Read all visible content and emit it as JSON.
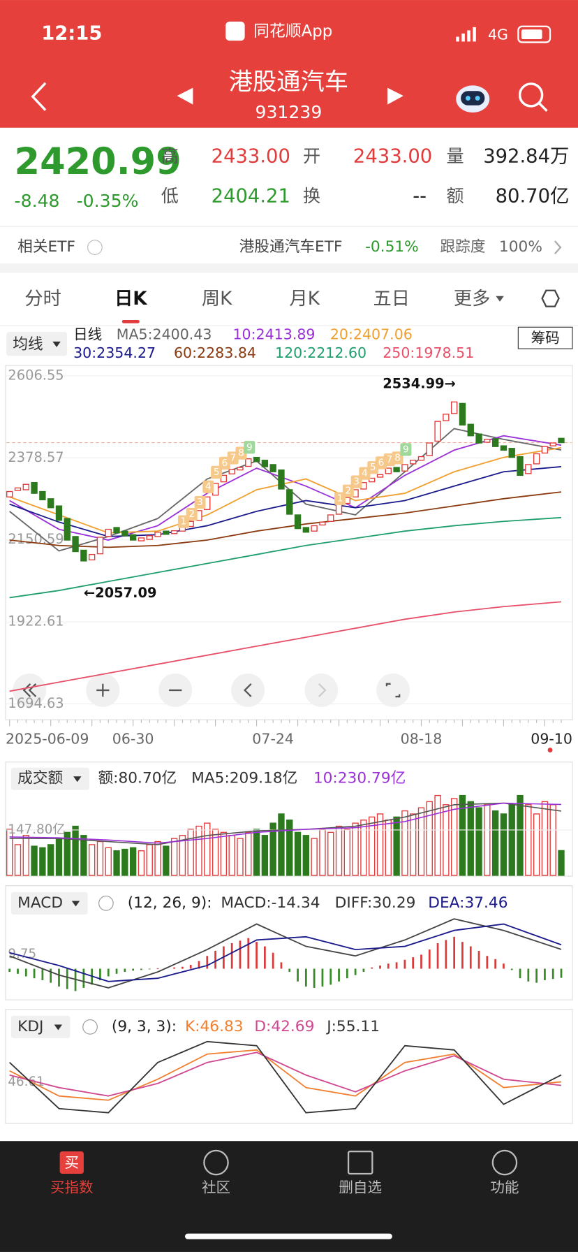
{
  "status": {
    "time": "12:15",
    "app": "同花顺App",
    "network": "4G"
  },
  "header": {
    "title": "港股通汽车",
    "code": "931239"
  },
  "quote": {
    "price": 2420.99,
    "change": "-8.48",
    "change_pct": "-0.35%",
    "high_label": "高",
    "high": "2433.00",
    "open_label": "开",
    "open": "2433.00",
    "volume_label": "量",
    "volume": "392.84万",
    "low_label": "低",
    "low": "2404.21",
    "turnover_label": "换",
    "turnover": "--",
    "amount_label": "额",
    "amount": "80.70亿"
  },
  "etf": {
    "label": "相关ETF",
    "name": "港股通汽车ETF",
    "pct": "-0.51%",
    "track_label": "跟踪度",
    "track": "100%"
  },
  "tabs": [
    "分时",
    "日K",
    "周K",
    "月K",
    "五日",
    "更多"
  ],
  "active_tab": 1,
  "ma_legend": {
    "selector": "均线",
    "period": "日线",
    "chip": "筹码",
    "items": [
      {
        "text": "MA5:2400.43",
        "color": "#666666"
      },
      {
        "text": "10:2413.89",
        "color": "#9b30d9"
      },
      {
        "text": "20:2407.06",
        "color": "#f0a030"
      },
      {
        "text": "30:2354.27",
        "color": "#1a1a8c"
      },
      {
        "text": "60:2283.84",
        "color": "#8b3a0f"
      },
      {
        "text": "120:2212.60",
        "color": "#1f9e6e"
      },
      {
        "text": "250:1978.51",
        "color": "#e8506a"
      }
    ]
  },
  "price_chart": {
    "type": "candlestick",
    "ylim": [
      1655,
      2631
    ],
    "yticks": [
      2606.55,
      2378.57,
      2150.59,
      1922.61,
      1694.63
    ],
    "categories": [
      "2025-06-09",
      null,
      null,
      null,
      null,
      null,
      null,
      null,
      null,
      null,
      null,
      null,
      null,
      null,
      null,
      "06-30",
      null,
      null,
      null,
      null,
      null,
      null,
      null,
      null,
      null,
      null,
      null,
      null,
      null,
      null,
      null,
      null,
      "07-24",
      null,
      null,
      null,
      null,
      null,
      null,
      null,
      null,
      null,
      null,
      null,
      null,
      null,
      null,
      null,
      null,
      null,
      "08-18",
      null,
      null,
      null,
      null,
      null,
      null,
      null,
      null,
      null,
      null,
      null,
      null,
      null,
      null,
      null,
      null,
      "09-10"
    ],
    "open": [
      2270,
      2288,
      2290,
      2310,
      2285,
      2265,
      2245,
      2210,
      2160,
      2122,
      2095,
      2112,
      2160,
      2185,
      2175,
      2165,
      2148,
      2152,
      2160,
      2175,
      2168,
      2175,
      2188,
      2205,
      2235,
      2275,
      2312,
      2334,
      2345,
      2355,
      2380,
      2372,
      2360,
      2345,
      2290,
      2220,
      2185,
      2175,
      2192,
      2202,
      2222,
      2252,
      2270,
      2292,
      2312,
      2325,
      2335,
      2352,
      2342,
      2362,
      2372,
      2385,
      2425,
      2482,
      2502,
      2530,
      2472,
      2445,
      2422,
      2432,
      2412,
      2405,
      2382,
      2335,
      2362,
      2392,
      2412,
      2433
    ],
    "close": [
      2285,
      2295,
      2305,
      2280,
      2262,
      2240,
      2205,
      2150,
      2118,
      2092,
      2110,
      2158,
      2180,
      2170,
      2162,
      2150,
      2156,
      2162,
      2172,
      2166,
      2176,
      2186,
      2202,
      2232,
      2270,
      2308,
      2330,
      2346,
      2352,
      2376,
      2368,
      2354,
      2340,
      2292,
      2222,
      2182,
      2172,
      2190,
      2200,
      2220,
      2250,
      2268,
      2290,
      2310,
      2322,
      2332,
      2350,
      2340,
      2360,
      2372,
      2382,
      2420,
      2480,
      2500,
      2534,
      2470,
      2440,
      2420,
      2430,
      2410,
      2400,
      2380,
      2330,
      2360,
      2390,
      2410,
      2420,
      2420.99
    ],
    "up_color": "#e23b3b",
    "down_color": "#2d7a1e",
    "ma_x": [
      0,
      6,
      12,
      18,
      24,
      30,
      36,
      42,
      48,
      54,
      60,
      67
    ],
    "ma_series": [
      {
        "name": "MA5",
        "color": "#666666",
        "values": [
          2230,
          2120,
          2160,
          2210,
          2320,
          2370,
          2250,
          2220,
          2340,
          2460,
          2430,
          2400.43
        ]
      },
      {
        "name": "MA10",
        "color": "#9b30d9",
        "values": [
          2260,
          2180,
          2150,
          2190,
          2280,
          2350,
          2300,
          2240,
          2330,
          2400,
          2440,
          2413.89
        ]
      },
      {
        "name": "MA20",
        "color": "#f0a030",
        "values": [
          2270,
          2220,
          2170,
          2175,
          2220,
          2290,
          2320,
          2260,
          2280,
          2340,
          2380,
          2407.06
        ]
      },
      {
        "name": "MA30",
        "color": "#1a1a8c",
        "values": [
          2250,
          2200,
          2160,
          2165,
          2190,
          2230,
          2260,
          2240,
          2260,
          2300,
          2340,
          2354.27
        ]
      },
      {
        "name": "MA60",
        "color": "#8b3a0f",
        "values": [
          2150,
          2135,
          2130,
          2135,
          2150,
          2175,
          2195,
          2210,
          2225,
          2245,
          2265,
          2283.84
        ]
      },
      {
        "name": "MA120",
        "color": "#1f9e6e",
        "values": [
          1990,
          2010,
          2035,
          2060,
          2085,
          2110,
          2135,
          2155,
          2175,
          2190,
          2202,
          2212.6
        ]
      },
      {
        "name": "MA250",
        "color": "#e8506a",
        "values": [
          1730,
          1755,
          1780,
          1805,
          1830,
          1855,
          1880,
          1905,
          1930,
          1950,
          1965,
          1978.51
        ]
      }
    ],
    "td_sequences": [
      {
        "start": 22,
        "labels": [
          1,
          2,
          3,
          4,
          5,
          6,
          7,
          8,
          9
        ]
      },
      {
        "start": 41,
        "labels": [
          1,
          2,
          3,
          4,
          5,
          6,
          7,
          8,
          9
        ]
      }
    ],
    "annotations": {
      "high": "2534.99→",
      "low": "←2057.09"
    }
  },
  "volume": {
    "selector": "成交额",
    "texts": [
      {
        "text": "额:80.70亿",
        "color": "#333333"
      },
      {
        "text": "MA5:209.18亿",
        "color": "#333333"
      },
      {
        "text": "10:230.79亿",
        "color": "#9b30d9"
      }
    ],
    "ylim": [
      0,
      265
    ],
    "yticks": [
      {
        "value": 147.8,
        "label": "147.80亿"
      }
    ],
    "values": [
      150,
      100,
      130,
      95,
      90,
      100,
      120,
      140,
      160,
      130,
      100,
      110,
      90,
      80,
      85,
      90,
      80,
      100,
      110,
      95,
      120,
      130,
      150,
      160,
      170,
      150,
      140,
      130,
      120,
      140,
      150,
      130,
      170,
      200,
      180,
      140,
      130,
      120,
      150,
      140,
      160,
      150,
      170,
      180,
      190,
      200,
      180,
      190,
      210,
      200,
      220,
      240,
      260,
      230,
      250,
      260,
      240,
      220,
      230,
      210,
      200,
      230,
      260,
      230,
      200,
      240,
      230,
      80.7
    ],
    "ma_series": [
      {
        "name": "MA5",
        "color": "#555555",
        "values": [
          120,
          120,
          110,
          100,
          130,
          145,
          150,
          160,
          190,
          230,
          235,
          209.18
        ]
      },
      {
        "name": "MA10",
        "color": "#9b30d9",
        "values": [
          125,
          122,
          115,
          105,
          120,
          140,
          150,
          155,
          175,
          215,
          235,
          230.79
        ]
      }
    ]
  },
  "macd": {
    "selector": "MACD",
    "params": "(12, 26, 9):",
    "texts": [
      {
        "text": "MACD:-14.34",
        "color": "#333333"
      },
      {
        "text": "DIFF:30.29",
        "color": "#333333"
      },
      {
        "text": "DEA:37.46",
        "color": "#1a1a8c"
      }
    ],
    "ylim": [
      -45,
      80
    ],
    "yticks": [
      9.75
    ],
    "hist": [
      -5,
      -8,
      -12,
      -15,
      -18,
      -22,
      -28,
      -32,
      -35,
      -30,
      -25,
      -18,
      -12,
      -8,
      -5,
      -3,
      -2,
      -1,
      0.5,
      1,
      2,
      3,
      6,
      12,
      20,
      28,
      35,
      40,
      44,
      48,
      42,
      35,
      25,
      10,
      -5,
      -20,
      -28,
      -30,
      -28,
      -25,
      -20,
      -15,
      -10,
      -5,
      2,
      5,
      8,
      10,
      14,
      18,
      22,
      30,
      40,
      45,
      50,
      42,
      35,
      28,
      20,
      15,
      8,
      -2,
      -15,
      -20,
      -22,
      -18,
      -16,
      -14.34
    ],
    "series": [
      {
        "name": "DIFF",
        "color": "#444444",
        "values": [
          20,
          -10,
          -30,
          -5,
          30,
          70,
          35,
          20,
          45,
          78,
          60,
          30.29
        ]
      },
      {
        "name": "DEA",
        "color": "#1a1a8c",
        "values": [
          25,
          5,
          -20,
          -15,
          5,
          45,
          50,
          30,
          35,
          60,
          70,
          37.46
        ]
      }
    ]
  },
  "kdj": {
    "selector": "KDJ",
    "params": "(9, 3, 3):",
    "texts": [
      {
        "text": "K:46.83",
        "color": "#f08030"
      },
      {
        "text": "D:42.69",
        "color": "#d04890"
      },
      {
        "text": "J:55.11",
        "color": "#333333"
      }
    ],
    "ylim": [
      0,
      100
    ],
    "yticks": [
      46.61
    ],
    "series": [
      {
        "name": "K",
        "color": "#f08030",
        "values": [
          60,
          30,
          25,
          50,
          80,
          85,
          40,
          30,
          70,
          80,
          40,
          46.83
        ]
      },
      {
        "name": "D",
        "color": "#d04890",
        "values": [
          55,
          40,
          30,
          45,
          70,
          82,
          55,
          35,
          60,
          78,
          50,
          42.69
        ]
      },
      {
        "name": "J",
        "color": "#333333",
        "values": [
          70,
          15,
          10,
          70,
          95,
          90,
          10,
          15,
          90,
          85,
          20,
          55.11
        ]
      }
    ]
  },
  "nav": {
    "icon": "买",
    "items": [
      "买指数",
      "社区",
      "删自选",
      "功能"
    ]
  }
}
